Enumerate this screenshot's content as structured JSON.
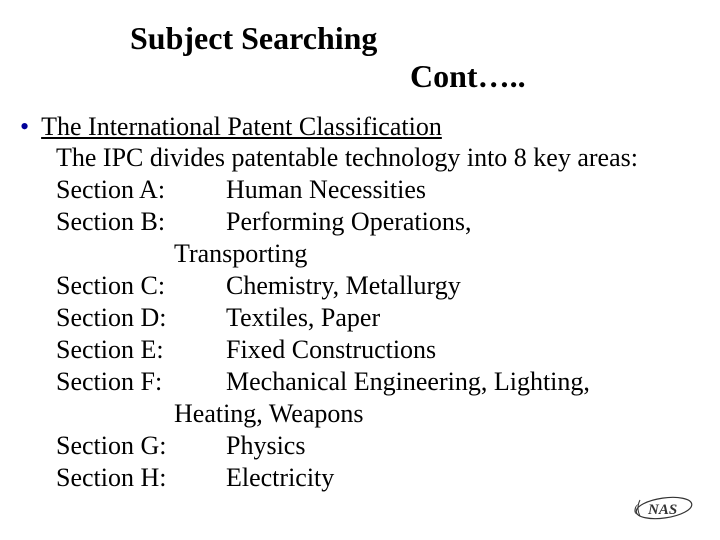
{
  "title": "Subject Searching",
  "subtitle": "Cont…..",
  "heading": "The International Patent Classification",
  "intro": "The IPC divides patentable technology into 8 key areas:",
  "sections": [
    {
      "label": "Section A:",
      "desc": "Human Necessities",
      "cont": ""
    },
    {
      "label": "Section B:",
      "desc": "Performing Operations,",
      "cont": "Transporting"
    },
    {
      "label": "Section C:",
      "desc": "Chemistry, Metallurgy",
      "cont": ""
    },
    {
      "label": "Section D:",
      "desc": "Textiles, Paper",
      "cont": ""
    },
    {
      "label": "Section E:",
      "desc": "Fixed Constructions",
      "cont": ""
    },
    {
      "label": "Section F:",
      "desc": "Mechanical Engineering, Lighting,",
      "cont": "Heating, Weapons"
    },
    {
      "label": "Section G:",
      "desc": "Physics",
      "cont": ""
    },
    {
      "label": "Section H:",
      "desc": "Electricity",
      "cont": ""
    }
  ],
  "logo_text": "NAS",
  "colors": {
    "bullet": "#000099",
    "text": "#000000",
    "background": "#ffffff"
  },
  "fontsize": {
    "title": 32,
    "body": 26
  }
}
